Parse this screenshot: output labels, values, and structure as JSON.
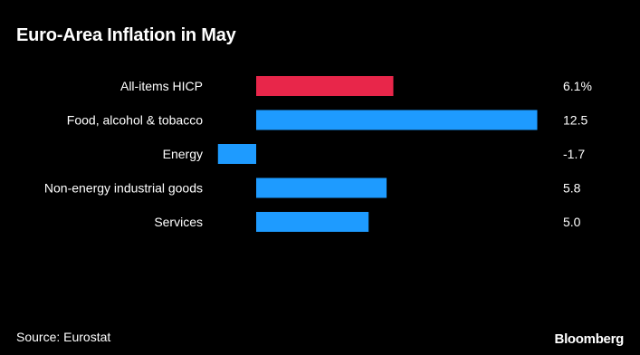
{
  "title": "Euro-Area Inflation in May",
  "source": "Source: Eurostat",
  "brand": "Bloomberg",
  "colors": {
    "background": "#000000",
    "highlight": "#e8264a",
    "bar": "#1e9bff",
    "text": "#ffffff"
  },
  "chart_data": {
    "type": "bar",
    "orientation": "horizontal",
    "categories": [
      "All-items HICP",
      "Food, alcohol & tobacco",
      "Energy",
      "Non-energy industrial goods",
      "Services"
    ],
    "values": [
      6.1,
      12.5,
      -1.7,
      5.8,
      5.0
    ],
    "value_labels": [
      "6.1%",
      "12.5",
      "-1.7",
      "5.8",
      "5.0"
    ],
    "highlight_index": 0,
    "xlim": [
      -1.7,
      12.5
    ],
    "grid": false,
    "legend": "none"
  }
}
